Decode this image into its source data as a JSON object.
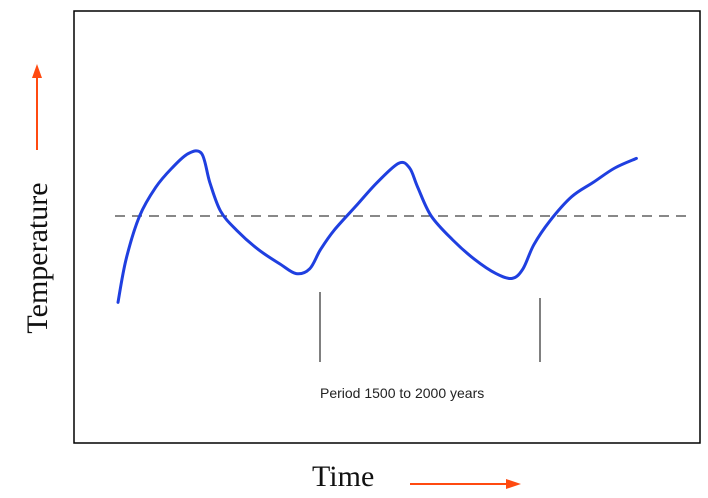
{
  "chart_data": {
    "type": "line",
    "title": "",
    "xlabel": "Time",
    "ylabel": "Temperature",
    "annotation": "Period 1500 to 2000 years",
    "grid": false,
    "legend": "none",
    "xlim": [
      0,
      10
    ],
    "ylim": [
      -1.5,
      1.5
    ],
    "mean_value": 0,
    "series": [
      {
        "color": "#1f3fe0",
        "x": [
          0.0,
          0.15,
          0.4,
          0.7,
          1.0,
          1.3,
          1.55,
          1.7,
          1.9,
          2.2,
          2.6,
          3.0,
          3.3,
          3.55,
          3.75,
          4.0,
          4.4,
          4.8,
          5.2,
          5.4,
          5.55,
          5.8,
          6.2,
          6.6,
          7.0,
          7.3,
          7.5,
          7.7,
          8.0,
          8.4,
          8.8,
          9.2,
          9.6
        ],
        "y": [
          -0.9,
          -0.45,
          0.0,
          0.3,
          0.5,
          0.65,
          0.65,
          0.35,
          0.05,
          -0.15,
          -0.35,
          -0.5,
          -0.6,
          -0.55,
          -0.35,
          -0.15,
          0.1,
          0.35,
          0.55,
          0.5,
          0.3,
          0.0,
          -0.25,
          -0.45,
          -0.6,
          -0.65,
          -0.55,
          -0.3,
          -0.05,
          0.2,
          0.35,
          0.5,
          0.6
        ]
      }
    ],
    "arrow_color": "#ff4a10",
    "line_color": "#000000"
  }
}
